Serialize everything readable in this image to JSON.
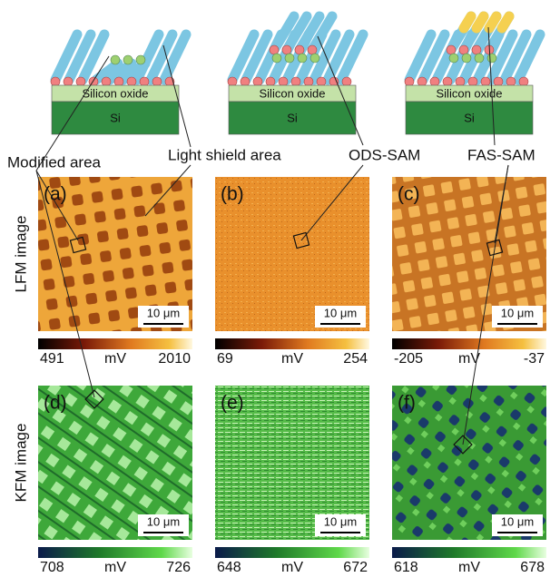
{
  "schematics": [
    {
      "oxide": "Silicon oxide",
      "substrate": "Si"
    },
    {
      "oxide": "Silicon oxide",
      "substrate": "Si"
    },
    {
      "oxide": "Silicon oxide",
      "substrate": "Si"
    }
  ],
  "callouts": [
    "Modified area",
    "Light shield area",
    "ODS-SAM",
    "FAS-SAM"
  ],
  "rows": [
    {
      "label": "LFM image",
      "panels": [
        {
          "tag": "(a)",
          "scale": "10 μm",
          "colorbar": {
            "min": "491",
            "unit": "mV",
            "max": "2010"
          }
        },
        {
          "tag": "(b)",
          "scale": "10 μm",
          "colorbar": {
            "min": "69",
            "unit": "mV",
            "max": "254"
          }
        },
        {
          "tag": "(c)",
          "scale": "10 μm",
          "colorbar": {
            "min": "-205",
            "unit": "mV",
            "max": "-37"
          }
        }
      ]
    },
    {
      "label": "KFM image",
      "panels": [
        {
          "tag": "(d)",
          "scale": "10 μm",
          "colorbar": {
            "min": "708",
            "unit": "mV",
            "max": "726"
          }
        },
        {
          "tag": "(e)",
          "scale": "10 μm",
          "colorbar": {
            "min": "648",
            "unit": "mV",
            "max": "672"
          }
        },
        {
          "tag": "(f)",
          "scale": "10 μm",
          "colorbar": {
            "min": "618",
            "unit": "mV",
            "max": "678"
          }
        }
      ]
    }
  ]
}
